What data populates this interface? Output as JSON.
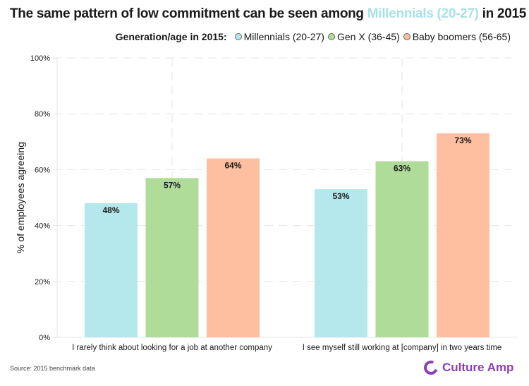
{
  "title": {
    "prefix": "The same pattern of low commitment can be seen among ",
    "highlight": "Millennials (20-27)",
    "suffix": " in 2015",
    "highlight_color": "#a8e2e8"
  },
  "legend": {
    "title": "Generation/age in 2015:",
    "items": [
      {
        "label": "Millennials (20-27)",
        "color": "#b5e8ec"
      },
      {
        "label": "Gen X (36-45)",
        "color": "#b0dc9a"
      },
      {
        "label": "Baby boomers (56-65)",
        "color": "#fdbf9f"
      }
    ]
  },
  "footer": {
    "source": "Source: 2015 benchmark data",
    "logo_text": "Culture Amp",
    "logo_color": "#8c3fb5"
  },
  "chart_data": {
    "type": "bar",
    "title": "The same pattern of low commitment can be seen among Millennials (20-27) in 2015",
    "xlabel": "",
    "ylabel": "% of employees agreeing",
    "ylim": [
      0,
      100
    ],
    "yticks": [
      "0%",
      "20%",
      "40%",
      "60%",
      "80%",
      "100%"
    ],
    "ytick_values": [
      0,
      20,
      40,
      60,
      80,
      100
    ],
    "grid": true,
    "legend_position": "top-right",
    "categories": [
      "I rarely think about looking for a job at another company",
      "I see myself still working at [company] in two years time"
    ],
    "series": [
      {
        "name": "Millennials (20-27)",
        "color": "#b5e8ec",
        "values": [
          48,
          53
        ],
        "labels": [
          "48%",
          "53%"
        ]
      },
      {
        "name": "Gen X (36-45)",
        "color": "#b0dc9a",
        "values": [
          57,
          63
        ],
        "labels": [
          "57%",
          "63%"
        ]
      },
      {
        "name": "Baby boomers (56-65)",
        "color": "#fdbf9f",
        "values": [
          64,
          73
        ],
        "labels": [
          "64%",
          "73%"
        ]
      }
    ]
  }
}
